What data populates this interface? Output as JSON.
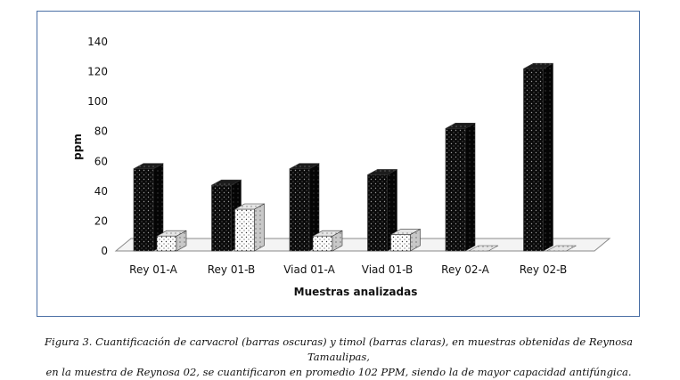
{
  "chart_data": {
    "type": "bar",
    "categories": [
      "Rey 01-A",
      "Rey 01-B",
      "Viad 01-A",
      "Viad 01-B",
      "Rey 02-A",
      "Rey 02-B"
    ],
    "series": [
      {
        "values": [
          55,
          44,
          55,
          51,
          82,
          122
        ],
        "color": "#111111",
        "pattern": "dark-dots"
      },
      {
        "values": [
          10,
          28,
          10,
          11,
          0,
          0
        ],
        "color": "#ffffff",
        "pattern": "light-dots"
      }
    ],
    "xlabel": "Muestras analizadas",
    "ylabel": "ppm",
    "ylim": [
      0,
      140
    ],
    "yticks": [
      0,
      20,
      40,
      60,
      80,
      100,
      120,
      140
    ],
    "grid": false,
    "legend": "none",
    "style": "3d-bars"
  },
  "caption": {
    "label": "Figura 3.",
    "text_line1": "Cuantificación de carvacrol (barras oscuras) y timol (barras claras), en muestras obtenidas de Reynosa Tamaulipas,",
    "text_line2": "en la muestra de Reynosa 02, se cuantificaron en promedio 102 PPM, siendo la de mayor capacidad antifúngica."
  }
}
